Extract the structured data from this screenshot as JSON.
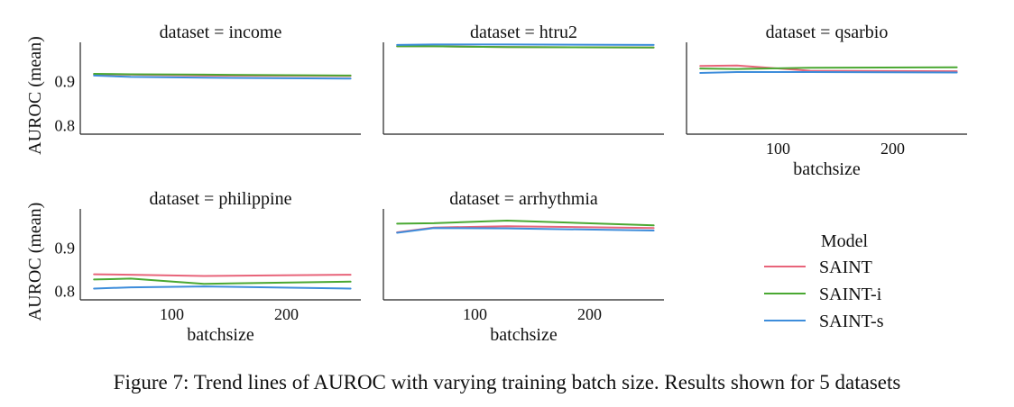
{
  "figure": {
    "caption": "Figure 7: Trend lines of AUROC with varying training batch size. Results shown for 5 datasets",
    "colors": {
      "axis": "#222222"
    }
  },
  "chart_data": [
    {
      "type": "line",
      "title": "dataset = income",
      "xlabel": "",
      "ylabel": "AUROC (mean)",
      "xlim": [
        20,
        265
      ],
      "ylim": [
        0.78,
        0.99
      ],
      "xticks": [],
      "yticks": [
        0.8,
        0.9
      ],
      "ytick_labels": [
        "0.8",
        "0.9"
      ],
      "x": [
        32,
        64,
        128,
        256
      ],
      "series": [
        {
          "name": "SAINT",
          "color": "#e8647a",
          "values": [
            0.917,
            0.916,
            0.914,
            0.913
          ]
        },
        {
          "name": "SAINT-i",
          "color": "#4aa832",
          "values": [
            0.918,
            0.917,
            0.916,
            0.914
          ]
        },
        {
          "name": "SAINT-s",
          "color": "#3d8ddb",
          "values": [
            0.914,
            0.911,
            0.909,
            0.907
          ]
        }
      ]
    },
    {
      "type": "line",
      "title": "dataset = htru2",
      "xlabel": "",
      "ylabel": "",
      "xlim": [
        20,
        265
      ],
      "ylim": [
        0.78,
        0.99
      ],
      "xticks": [],
      "yticks": [],
      "ytick_labels": [],
      "x": [
        32,
        64,
        128,
        256
      ],
      "series": [
        {
          "name": "SAINT",
          "color": "#e8647a",
          "values": [
            0.981,
            0.981,
            0.979,
            0.978
          ]
        },
        {
          "name": "SAINT-i",
          "color": "#4aa832",
          "values": [
            0.981,
            0.981,
            0.979,
            0.978
          ]
        },
        {
          "name": "SAINT-s",
          "color": "#3d8ddb",
          "values": [
            0.984,
            0.985,
            0.985,
            0.984
          ]
        }
      ]
    },
    {
      "type": "line",
      "title": "dataset = qsarbio",
      "xlabel": "batchsize",
      "ylabel": "",
      "xlim": [
        20,
        265
      ],
      "ylim": [
        0.78,
        0.99
      ],
      "xticks": [
        100,
        200
      ],
      "xtick_labels": [
        "100",
        "200"
      ],
      "yticks": [],
      "ytick_labels": [],
      "x": [
        32,
        64,
        128,
        256
      ],
      "series": [
        {
          "name": "SAINT",
          "color": "#e8647a",
          "values": [
            0.936,
            0.937,
            0.925,
            0.924
          ]
        },
        {
          "name": "SAINT-i",
          "color": "#4aa832",
          "values": [
            0.93,
            0.929,
            0.932,
            0.933
          ]
        },
        {
          "name": "SAINT-s",
          "color": "#3d8ddb",
          "values": [
            0.92,
            0.922,
            0.922,
            0.921
          ]
        }
      ]
    },
    {
      "type": "line",
      "title": "dataset = philippine",
      "xlabel": "batchsize",
      "ylabel": "AUROC (mean)",
      "xlim": [
        20,
        265
      ],
      "ylim": [
        0.78,
        0.99
      ],
      "xticks": [
        100,
        200
      ],
      "xtick_labels": [
        "100",
        "200"
      ],
      "yticks": [
        0.8,
        0.9
      ],
      "ytick_labels": [
        "0.8",
        "0.9"
      ],
      "x": [
        32,
        64,
        128,
        256
      ],
      "series": [
        {
          "name": "SAINT",
          "color": "#e8647a",
          "values": [
            0.839,
            0.838,
            0.835,
            0.838
          ]
        },
        {
          "name": "SAINT-i",
          "color": "#4aa832",
          "values": [
            0.827,
            0.829,
            0.817,
            0.822
          ]
        },
        {
          "name": "SAINT-s",
          "color": "#3d8ddb",
          "values": [
            0.806,
            0.809,
            0.811,
            0.806
          ]
        }
      ]
    },
    {
      "type": "line",
      "title": "dataset = arrhythmia",
      "xlabel": "batchsize",
      "ylabel": "",
      "xlim": [
        20,
        265
      ],
      "ylim": [
        0.78,
        0.99
      ],
      "xticks": [
        100,
        200
      ],
      "xtick_labels": [
        "100",
        "200"
      ],
      "yticks": [],
      "ytick_labels": [],
      "x": [
        32,
        64,
        128,
        256
      ],
      "series": [
        {
          "name": "SAINT",
          "color": "#e8647a",
          "values": [
            0.936,
            0.947,
            0.95,
            0.946
          ]
        },
        {
          "name": "SAINT-i",
          "color": "#4aa832",
          "values": [
            0.956,
            0.957,
            0.963,
            0.952
          ]
        },
        {
          "name": "SAINT-s",
          "color": "#3d8ddb",
          "values": [
            0.935,
            0.946,
            0.945,
            0.94
          ]
        }
      ]
    }
  ],
  "legend": {
    "title": "Model",
    "placement": "bottom-right",
    "items": [
      {
        "label": "SAINT",
        "color": "#e8647a"
      },
      {
        "label": "SAINT-i",
        "color": "#4aa832"
      },
      {
        "label": "SAINT-s",
        "color": "#3d8ddb"
      }
    ]
  }
}
